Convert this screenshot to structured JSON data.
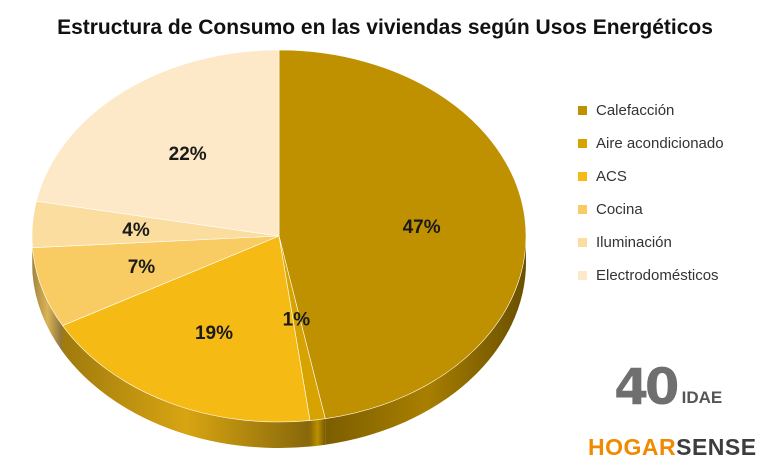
{
  "chart_data": {
    "type": "pie",
    "title": "Estructura de Consumo en las viviendas según Usos Energéticos",
    "categories": [
      "Calefacción",
      "Aire acondicionado",
      "ACS",
      "Cocina",
      "Iluminación",
      "Electrodomésticos"
    ],
    "values": [
      47,
      1,
      19,
      7,
      4,
      22
    ],
    "value_labels": [
      "47%",
      "1%",
      "19%",
      "7%",
      "4%",
      "22%"
    ],
    "colors": [
      "#bf9000",
      "#d6a300",
      "#f5bb14",
      "#f8cc63",
      "#fbdd9f",
      "#fde8c8"
    ],
    "legend_position": "right"
  },
  "logo": {
    "number": "40",
    "org": "IDAE"
  },
  "brand": {
    "part1": "HOGAR",
    "part2": "SENSE"
  }
}
